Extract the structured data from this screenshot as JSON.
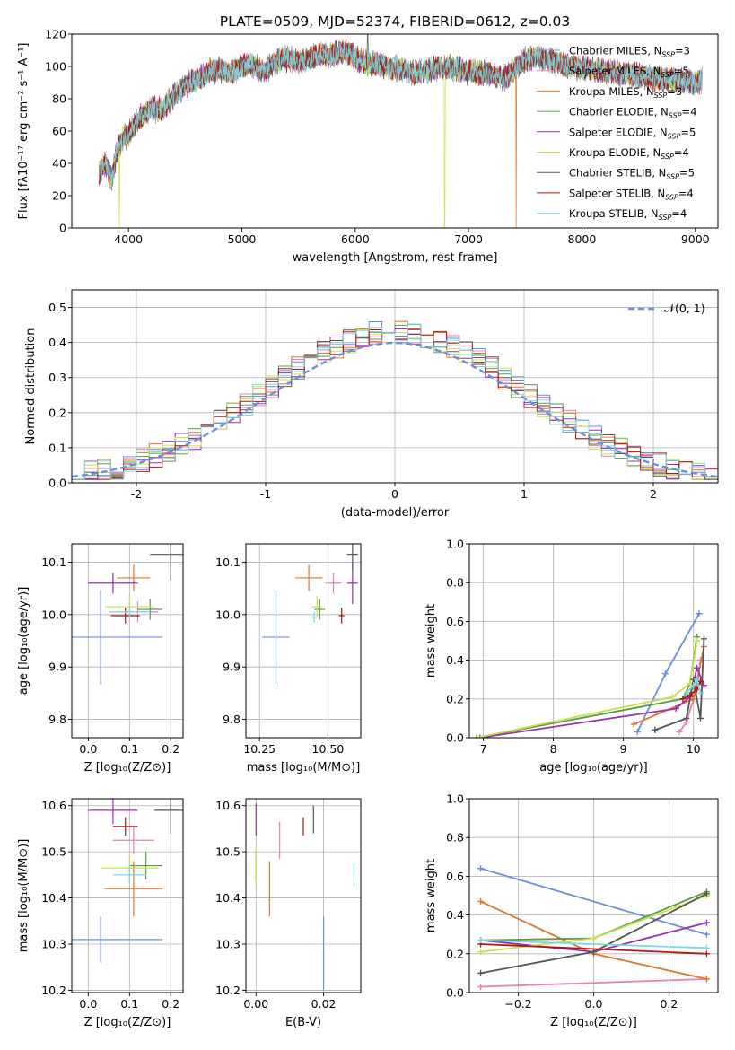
{
  "figure_title": "PLATE=0509, MJD=52374, FIBERID=0612, z=0.03",
  "chart_data": [
    {
      "id": "spectrum",
      "type": "line",
      "xlabel": "wavelength [Angstrom, rest frame]",
      "ylabel": "Flux [fλ10⁻¹⁷ erg cm⁻² s⁻¹ A⁻¹]",
      "xlim": [
        3500,
        9200
      ],
      "ylim": [
        0,
        120
      ],
      "xticks": [
        4000,
        5000,
        6000,
        7000,
        8000,
        9000
      ],
      "yticks": [
        0,
        20,
        40,
        60,
        80,
        100,
        120
      ],
      "legend_position": "right",
      "x": [
        3740,
        3800,
        3850,
        3900,
        3950,
        4000,
        4100,
        4200,
        4300,
        4400,
        4500,
        4600,
        4700,
        4800,
        4900,
        5000,
        5100,
        5200,
        5300,
        5400,
        5500,
        5600,
        5700,
        5800,
        5900,
        6000,
        6100,
        6200,
        6300,
        6400,
        6500,
        6600,
        6700,
        6800,
        6900,
        7000,
        7100,
        7200,
        7300,
        7400,
        7500,
        7600,
        7700,
        7800,
        7900,
        8000,
        8100,
        8200,
        8300,
        8400,
        8500,
        8600,
        8700,
        8800,
        8900,
        9000,
        9060
      ],
      "flux": [
        35,
        40,
        30,
        48,
        55,
        58,
        68,
        74,
        73,
        82,
        88,
        92,
        96,
        98,
        96,
        100,
        101,
        97,
        103,
        105,
        103,
        105,
        108,
        107,
        110,
        105,
        102,
        101,
        99,
        98,
        96,
        97,
        99,
        100,
        98,
        97,
        96,
        95,
        92,
        98,
        104,
        106,
        104,
        102,
        100,
        99,
        98,
        97,
        96,
        95,
        94,
        93,
        92,
        92,
        91,
        90,
        91
      ],
      "artifacts": [
        {
          "x": 3920,
          "y": 0
        },
        {
          "x": 6790,
          "y": 0
        },
        {
          "x": 7420,
          "y": 0
        },
        {
          "x": 6110,
          "y": 120
        }
      ],
      "series": [
        {
          "name": "Chabrier MILES, N_SSP=3",
          "label": "Chabrier MILES, N",
          "sub": "SSP",
          "suffix": "=3",
          "color": "#6a8fdc"
        },
        {
          "name": "Salpeter MILES, N_SSP=5",
          "label": "Salpeter MILES, N",
          "sub": "SSP",
          "suffix": "=5",
          "color": "#e87fb8"
        },
        {
          "name": "Kroupa MILES, N_SSP=3",
          "label": "Kroupa MILES, N",
          "sub": "SSP",
          "suffix": "=3",
          "color": "#e0762a"
        },
        {
          "name": "Chabrier ELODIE, N_SSP=4",
          "label": "Chabrier ELODIE, N",
          "sub": "SSP",
          "suffix": "=4",
          "color": "#5a9a4e"
        },
        {
          "name": "Salpeter ELODIE, N_SSP=5",
          "label": "Salpeter ELODIE, N",
          "sub": "SSP",
          "suffix": "=5",
          "color": "#9a2fb0"
        },
        {
          "name": "Kroupa ELODIE, N_SSP=4",
          "label": "Kroupa ELODIE, N",
          "sub": "SSP",
          "suffix": "=4",
          "color": "#c8e04a"
        },
        {
          "name": "Chabrier STELIB, N_SSP=5",
          "label": "Chabrier STELIB, N",
          "sub": "SSP",
          "suffix": "=5",
          "color": "#555555"
        },
        {
          "name": "Salpeter STELIB, N_SSP=4",
          "label": "Salpeter STELIB, N",
          "sub": "SSP",
          "suffix": "=4",
          "color": "#b01818"
        },
        {
          "name": "Kroupa STELIB, N_SSP=4",
          "label": "Kroupa STELIB, N",
          "sub": "SSP",
          "suffix": "=4",
          "color": "#7fd6e0"
        }
      ]
    },
    {
      "id": "residuals",
      "type": "step",
      "xlabel": "(data-model)/error",
      "ylabel": "Normed distribution",
      "xlim": [
        -2.5,
        2.5
      ],
      "ylim": [
        0,
        0.55
      ],
      "xticks": [
        -2,
        -1,
        0,
        1,
        2
      ],
      "yticks": [
        0.0,
        0.1,
        0.2,
        0.3,
        0.4,
        0.5
      ],
      "grid": true,
      "legend": {
        "label": "𝒩(0, 1)",
        "color": "#6a8fdc",
        "position": "top-right"
      },
      "bin_width": 0.1,
      "reference_curve": "normal(0,1)"
    },
    {
      "id": "age_vs_Z",
      "type": "errorbar",
      "xlabel": "Z [log₁₀(Z/Z⊙)]",
      "ylabel": "age  [log₁₀(age/yr)]",
      "xlim": [
        -0.04,
        0.23
      ],
      "ylim": [
        9.765,
        10.135
      ],
      "xticks": [
        0.0,
        0.1,
        0.2
      ],
      "xtick_labels": [
        "0.0",
        "0.1",
        "0.2"
      ],
      "yticks": [
        9.8,
        9.9,
        10.0,
        10.1
      ],
      "grid": true,
      "points": [
        {
          "x": 0.03,
          "y": 9.957,
          "xerr": 0.15,
          "yerr": 0.09,
          "series": "Chabrier MILES, N_SSP=3"
        },
        {
          "x": 0.12,
          "y": 10.005,
          "xerr": 0.05,
          "yerr": 0.02,
          "series": "Salpeter MILES, N_SSP=5"
        },
        {
          "x": 0.11,
          "y": 10.07,
          "xerr": 0.04,
          "yerr": 0.025,
          "series": "Kroupa MILES, N_SSP=3"
        },
        {
          "x": 0.15,
          "y": 10.01,
          "xerr": 0.03,
          "yerr": 0.02,
          "series": "Chabrier ELODIE, N_SSP=4"
        },
        {
          "x": 0.06,
          "y": 10.06,
          "xerr": 0.06,
          "yerr": 0.02,
          "series": "Salpeter ELODIE, N_SSP=5"
        },
        {
          "x": 0.1,
          "y": 10.015,
          "xerr": 0.06,
          "yerr": 0.02,
          "series": "Kroupa ELODIE, N_SSP=4"
        },
        {
          "x": 0.2,
          "y": 10.115,
          "xerr": 0.05,
          "yerr": 0.05,
          "series": "Chabrier STELIB, N_SSP=5"
        },
        {
          "x": 0.09,
          "y": 9.998,
          "xerr": 0.035,
          "yerr": 0.015,
          "series": "Salpeter STELIB, N_SSP=4"
        },
        {
          "x": 0.1,
          "y": 10.005,
          "xerr": 0.05,
          "yerr": 0.01,
          "series": "Kroupa STELIB, N_SSP=4"
        }
      ]
    },
    {
      "id": "age_vs_mass",
      "type": "errorbar",
      "xlabel": "mass [log₁₀(M/M⊙)]",
      "ylabel": "",
      "xlim": [
        10.2,
        10.62
      ],
      "ylim": [
        9.765,
        10.135
      ],
      "xticks": [
        10.25,
        10.5
      ],
      "xtick_labels": [
        "10.25",
        "10.50"
      ],
      "yticks": [
        9.8,
        9.9,
        10.0,
        10.1
      ],
      "grid": true,
      "points": [
        {
          "x": 10.31,
          "y": 9.957,
          "xerr": 0.05,
          "yerr": 0.09,
          "series": "Chabrier MILES, N_SSP=3"
        },
        {
          "x": 10.52,
          "y": 10.06,
          "xerr": 0.03,
          "yerr": 0.02,
          "series": "Salpeter MILES, N_SSP=5"
        },
        {
          "x": 10.43,
          "y": 10.07,
          "xerr": 0.05,
          "yerr": 0.025,
          "series": "Kroupa MILES, N_SSP=3"
        },
        {
          "x": 10.47,
          "y": 10.01,
          "xerr": 0.02,
          "yerr": 0.02,
          "series": "Chabrier ELODIE, N_SSP=4"
        },
        {
          "x": 10.59,
          "y": 10.06,
          "xerr": 0.02,
          "yerr": 0.04,
          "series": "Salpeter ELODIE, N_SSP=5"
        },
        {
          "x": 10.46,
          "y": 10.015,
          "xerr": 0.02,
          "yerr": 0.02,
          "series": "Kroupa ELODIE, N_SSP=4"
        },
        {
          "x": 10.59,
          "y": 10.115,
          "xerr": 0.02,
          "yerr": 0.03,
          "series": "Chabrier STELIB, N_SSP=5"
        },
        {
          "x": 10.55,
          "y": 9.998,
          "xerr": 0.01,
          "yerr": 0.015,
          "series": "Salpeter STELIB, N_SSP=4"
        },
        {
          "x": 10.45,
          "y": 9.995,
          "xerr": 0.01,
          "yerr": 0.01,
          "series": "Kroupa STELIB, N_SSP=4"
        }
      ]
    },
    {
      "id": "weight_vs_age",
      "type": "line",
      "xlabel": "age  [log₁₀(age/yr)]",
      "ylabel": "mass weight",
      "xlim": [
        6.8,
        10.35
      ],
      "ylim": [
        0,
        1.0
      ],
      "xticks": [
        7,
        8,
        9,
        10
      ],
      "yticks": [
        0.0,
        0.2,
        0.4,
        0.6,
        0.8,
        1.0
      ],
      "grid": true,
      "lines": [
        {
          "series": "Chabrier MILES, N_SSP=3",
          "x": [
            9.2,
            9.6,
            10.08
          ],
          "y": [
            0.03,
            0.33,
            0.64
          ]
        },
        {
          "series": "Salpeter MILES, N_SSP=5",
          "x": [
            9.8,
            9.9,
            10.0,
            10.05,
            10.1
          ],
          "y": [
            0.03,
            0.08,
            0.2,
            0.25,
            0.4
          ]
        },
        {
          "series": "Kroupa MILES, N_SSP=3",
          "x": [
            9.15,
            10.0,
            10.15
          ],
          "y": [
            0.07,
            0.2,
            0.47
          ]
        },
        {
          "series": "Chabrier ELODIE, N_SSP=4",
          "x": [
            6.9,
            9.85,
            9.95,
            10.05
          ],
          "y": [
            0.0,
            0.2,
            0.28,
            0.52
          ]
        },
        {
          "series": "Salpeter ELODIE, N_SSP=5",
          "x": [
            6.95,
            9.75,
            9.95,
            10.05,
            10.15
          ],
          "y": [
            0.0,
            0.15,
            0.21,
            0.36,
            0.27
          ]
        },
        {
          "series": "Kroupa ELODIE, N_SSP=4",
          "x": [
            6.9,
            9.7,
            9.95,
            10.05
          ],
          "y": [
            0.0,
            0.21,
            0.28,
            0.5
          ]
        },
        {
          "series": "Chabrier STELIB, N_SSP=5",
          "x": [
            9.45,
            9.9,
            10.0,
            10.1,
            10.15
          ],
          "y": [
            0.04,
            0.1,
            0.3,
            0.1,
            0.51
          ]
        },
        {
          "series": "Salpeter STELIB, N_SSP=4",
          "x": [
            9.85,
            9.95,
            10.05,
            10.1
          ],
          "y": [
            0.2,
            0.22,
            0.25,
            0.29
          ]
        },
        {
          "series": "Kroupa STELIB, N_SSP=4",
          "x": [
            9.9,
            10.0,
            10.05,
            10.1
          ],
          "y": [
            0.23,
            0.27,
            0.3,
            0.23
          ]
        }
      ]
    },
    {
      "id": "mass_vs_Z",
      "type": "errorbar",
      "xlabel": "Z [log₁₀(Z/Z⊙)]",
      "ylabel": "mass [log₁₀(M/M⊙)]",
      "xlim": [
        -0.04,
        0.23
      ],
      "ylim": [
        10.195,
        10.615
      ],
      "xticks": [
        0.0,
        0.1,
        0.2
      ],
      "xtick_labels": [
        "0.0",
        "0.1",
        "0.2"
      ],
      "yticks": [
        10.2,
        10.3,
        10.4,
        10.5,
        10.6
      ],
      "yprecision": 1,
      "grid": true,
      "points": [
        {
          "x": 0.03,
          "y": 10.31,
          "xerr": 0.15,
          "yerr": 0.05,
          "series": "Chabrier MILES, N_SSP=3"
        },
        {
          "x": 0.11,
          "y": 10.525,
          "xerr": 0.05,
          "yerr": 0.03,
          "series": "Salpeter MILES, N_SSP=5"
        },
        {
          "x": 0.11,
          "y": 10.42,
          "xerr": 0.07,
          "yerr": 0.06,
          "series": "Kroupa MILES, N_SSP=3"
        },
        {
          "x": 0.14,
          "y": 10.47,
          "xerr": 0.04,
          "yerr": 0.03,
          "series": "Chabrier ELODIE, N_SSP=4"
        },
        {
          "x": 0.06,
          "y": 10.59,
          "xerr": 0.06,
          "yerr": 0.03,
          "series": "Salpeter ELODIE, N_SSP=5"
        },
        {
          "x": 0.1,
          "y": 10.465,
          "xerr": 0.07,
          "yerr": 0.03,
          "series": "Kroupa ELODIE, N_SSP=4"
        },
        {
          "x": 0.2,
          "y": 10.59,
          "xerr": 0.04,
          "yerr": 0.05,
          "series": "Chabrier STELIB, N_SSP=5"
        },
        {
          "x": 0.09,
          "y": 10.555,
          "xerr": 0.03,
          "yerr": 0.02,
          "series": "Salpeter STELIB, N_SSP=4"
        },
        {
          "x": 0.1,
          "y": 10.45,
          "xerr": 0.04,
          "yerr": 0.02,
          "series": "Kroupa STELIB, N_SSP=4"
        }
      ]
    },
    {
      "id": "mass_vs_EBV",
      "type": "errorbar",
      "xlabel": "E(B-V)",
      "ylabel": "",
      "xlim": [
        -0.003,
        0.031
      ],
      "ylim": [
        10.195,
        10.615
      ],
      "xticks": [
        0.0,
        0.02
      ],
      "xtick_labels": [
        "0.00",
        "0.02"
      ],
      "yticks": [
        10.2,
        10.3,
        10.4,
        10.5,
        10.6
      ],
      "yprecision": 1,
      "grid": true,
      "points": [
        {
          "x": 0.02,
          "y": 10.28,
          "xerr": 0,
          "yerr": 0.08,
          "series": "Chabrier MILES, N_SSP=3"
        },
        {
          "x": 0.007,
          "y": 10.525,
          "xerr": 0,
          "yerr": 0.04,
          "series": "Salpeter MILES, N_SSP=5"
        },
        {
          "x": 0.004,
          "y": 10.42,
          "xerr": 0,
          "yerr": 0.06,
          "series": "Kroupa MILES, N_SSP=3"
        },
        {
          "x": 0.0,
          "y": 10.47,
          "xerr": 0,
          "yerr": 0.03,
          "series": "Chabrier ELODIE, N_SSP=4"
        },
        {
          "x": 0.0,
          "y": 10.57,
          "xerr": 0,
          "yerr": 0.035,
          "series": "Salpeter ELODIE, N_SSP=5"
        },
        {
          "x": 0.0,
          "y": 10.465,
          "xerr": 0,
          "yerr": 0.04,
          "series": "Kroupa ELODIE, N_SSP=4"
        },
        {
          "x": 0.017,
          "y": 10.57,
          "xerr": 0,
          "yerr": 0.03,
          "series": "Chabrier STELIB, N_SSP=5"
        },
        {
          "x": 0.014,
          "y": 10.555,
          "xerr": 0,
          "yerr": 0.02,
          "series": "Salpeter STELIB, N_SSP=4"
        },
        {
          "x": 0.029,
          "y": 10.45,
          "xerr": 0,
          "yerr": 0.025,
          "series": "Kroupa STELIB, N_SSP=4"
        }
      ]
    },
    {
      "id": "weight_vs_Z",
      "type": "line",
      "xlabel": "Z [log₁₀(Z/Z⊙)]",
      "ylabel": "mass weight",
      "xlim": [
        -0.33,
        0.33
      ],
      "ylim": [
        0,
        1.0
      ],
      "xticks": [
        -0.2,
        0.0,
        0.2
      ],
      "xtick_labels": [
        "−0.2",
        "0.0",
        "0.2"
      ],
      "yticks": [
        0.0,
        0.2,
        0.4,
        0.6,
        0.8,
        1.0
      ],
      "grid": true,
      "lines": [
        {
          "series": "Chabrier MILES, N_SSP=3",
          "x": [
            -0.3,
            0.3
          ],
          "y": [
            0.64,
            0.3
          ]
        },
        {
          "series": "Salpeter MILES, N_SSP=5",
          "x": [
            -0.3,
            0.3
          ],
          "y": [
            0.03,
            0.07
          ]
        },
        {
          "series": "Kroupa MILES, N_SSP=3",
          "x": [
            -0.3,
            0.0,
            0.3
          ],
          "y": [
            0.47,
            0.2,
            0.07
          ]
        },
        {
          "series": "Chabrier ELODIE, N_SSP=4",
          "x": [
            -0.3,
            0.0,
            0.3
          ],
          "y": [
            0.27,
            0.28,
            0.52
          ]
        },
        {
          "series": "Salpeter ELODIE, N_SSP=5",
          "x": [
            -0.3,
            0.0,
            0.3
          ],
          "y": [
            0.27,
            0.21,
            0.36
          ]
        },
        {
          "series": "Kroupa ELODIE, N_SSP=4",
          "x": [
            -0.3,
            0.0,
            0.3
          ],
          "y": [
            0.21,
            0.28,
            0.5
          ]
        },
        {
          "series": "Chabrier STELIB, N_SSP=5",
          "x": [
            -0.3,
            0.0,
            0.3
          ],
          "y": [
            0.1,
            0.21,
            0.51
          ]
        },
        {
          "series": "Salpeter STELIB, N_SSP=4",
          "x": [
            -0.3,
            0.3
          ],
          "y": [
            0.25,
            0.2
          ]
        },
        {
          "series": "Kroupa STELIB, N_SSP=4",
          "x": [
            -0.3,
            0.3
          ],
          "y": [
            0.27,
            0.23
          ]
        }
      ]
    }
  ]
}
